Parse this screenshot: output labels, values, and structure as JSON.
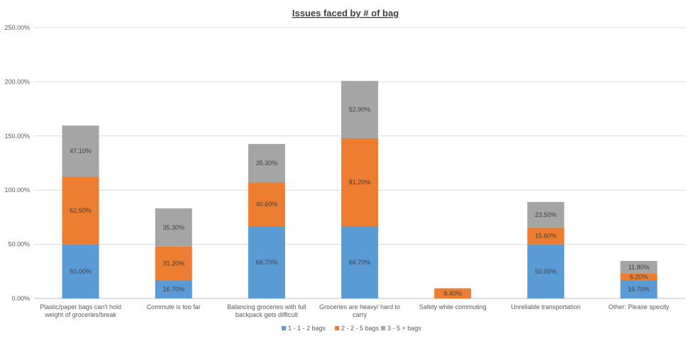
{
  "chart_data": {
    "type": "bar",
    "stacked": true,
    "title": "Issues faced by # of bag",
    "xlabel": "",
    "ylabel": "",
    "ylim": [
      0,
      250
    ],
    "yticks": [
      0,
      50,
      100,
      150,
      200,
      250
    ],
    "ytick_labels": [
      "0.00%",
      "50.00%",
      "100.00%",
      "150.00%",
      "200.00%",
      "250.00%"
    ],
    "grid": true,
    "legend_position": "bottom",
    "categories": [
      [
        "Plastic/paper bags can't hold",
        "weight of groceries/break"
      ],
      [
        "Commute is too far"
      ],
      [
        "Balancing groceries with full",
        "backpack gets difficult"
      ],
      [
        "Groceries are heavy/ hard to",
        "carry"
      ],
      [
        "Safety while commuting"
      ],
      [
        "Unreliable transportation"
      ],
      [
        "Other: Please specify"
      ]
    ],
    "series": [
      {
        "name": "1 - 1 - 2 bags",
        "color": "#5b9bd5",
        "values": [
          50.0,
          16.7,
          66.7,
          66.7,
          0,
          50.0,
          16.7
        ],
        "labels": [
          "50.00%",
          "16.70%",
          "66.70%",
          "66.70%",
          "",
          "50.00%",
          "16.70%"
        ]
      },
      {
        "name": "2 - 2 - 5 bags",
        "color": "#ed7d31",
        "values": [
          62.5,
          31.2,
          40.6,
          81.2,
          9.4,
          15.6,
          6.2
        ],
        "labels": [
          "62.50%",
          "31.20%",
          "40.60%",
          "81.20%",
          "9.40%",
          "15.60%",
          "6.20%"
        ]
      },
      {
        "name": "3 - 5 + bags",
        "color": "#a5a5a5",
        "values": [
          47.1,
          35.3,
          35.3,
          52.9,
          0,
          23.5,
          11.8
        ],
        "labels": [
          "47.10%",
          "35.30%",
          "35.30%",
          "52.90%",
          "",
          "23.50%",
          "11.80%"
        ]
      }
    ]
  }
}
